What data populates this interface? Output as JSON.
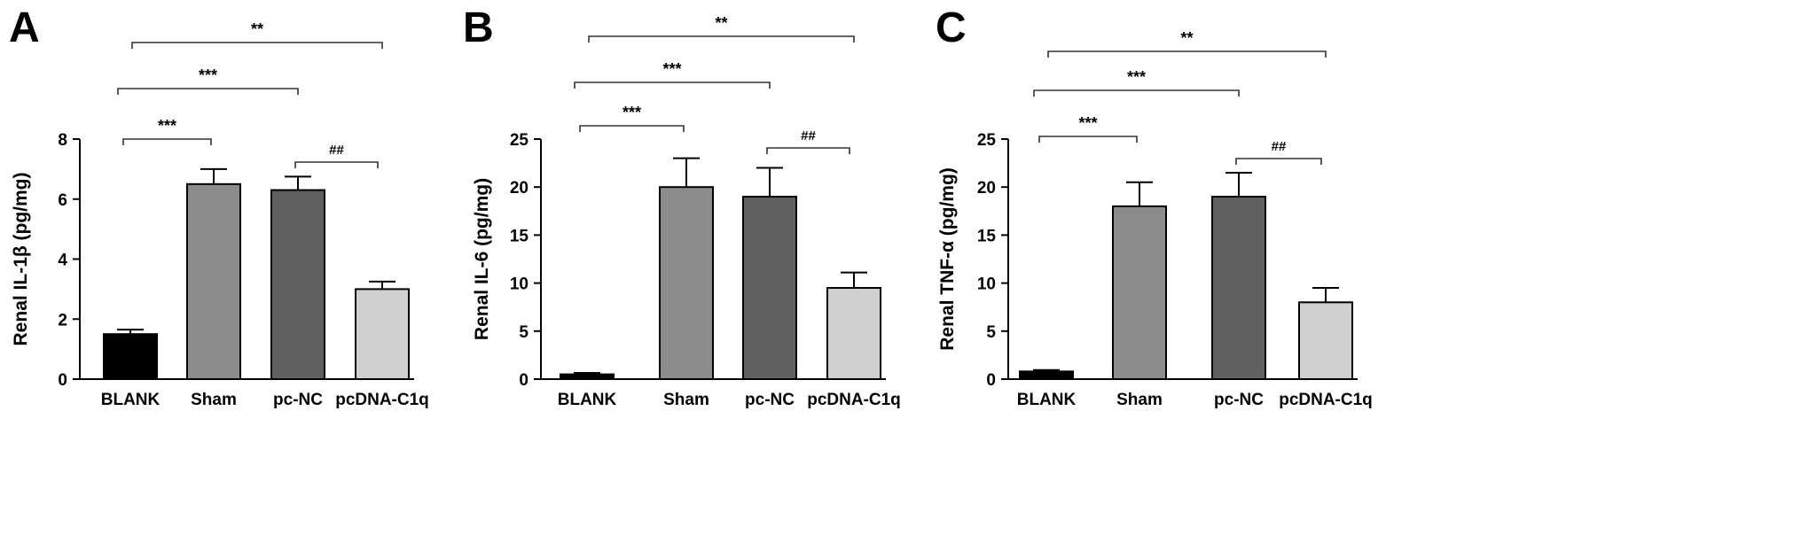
{
  "figure": {
    "colors": {
      "axis": "#000000",
      "bracket": "#333333"
    }
  },
  "chart_data": [
    {
      "panel": "A",
      "type": "bar",
      "categories": [
        "BLANK",
        "Sham",
        "pc-NC",
        "pcDNA-C1q"
      ],
      "values": [
        1.5,
        6.5,
        6.3,
        3.0
      ],
      "errors": [
        0.15,
        0.5,
        0.45,
        0.25
      ],
      "colors": [
        "#000000",
        "#8c8c8c",
        "#606060",
        "#cfcfcf"
      ],
      "ylabel": "Renal IL-1β (pg/mg)",
      "ylim": [
        0,
        8
      ],
      "yticks": [
        0,
        2,
        4,
        6,
        8
      ],
      "comparisons": [
        {
          "from": 0,
          "to": 1,
          "label": "***"
        },
        {
          "from": 0,
          "to": 2,
          "label": "***"
        },
        {
          "from": 0,
          "to": 3,
          "label": "**"
        },
        {
          "from": 2,
          "to": 3,
          "label": "##"
        }
      ]
    },
    {
      "panel": "B",
      "type": "bar",
      "categories": [
        "BLANK",
        "Sham",
        "pc-NC",
        "pcDNA-C1q"
      ],
      "values": [
        0.5,
        20,
        19,
        9.5
      ],
      "errors": [
        0.15,
        3,
        3,
        1.6
      ],
      "colors": [
        "#000000",
        "#8c8c8c",
        "#606060",
        "#cfcfcf"
      ],
      "ylabel": "Renal IL-6 (pg/mg)",
      "ylim": [
        0,
        25
      ],
      "yticks": [
        0,
        5,
        10,
        15,
        20,
        25
      ],
      "comparisons": [
        {
          "from": 0,
          "to": 1,
          "label": "***"
        },
        {
          "from": 0,
          "to": 2,
          "label": "***"
        },
        {
          "from": 0,
          "to": 3,
          "label": "**"
        },
        {
          "from": 2,
          "to": 3,
          "label": "##"
        }
      ]
    },
    {
      "panel": "C",
      "type": "bar",
      "categories": [
        "BLANK",
        "Sham",
        "pc-NC",
        "pcDNA-C1q"
      ],
      "values": [
        0.8,
        18,
        19,
        8
      ],
      "errors": [
        0.15,
        2.5,
        2.5,
        1.5
      ],
      "colors": [
        "#000000",
        "#8c8c8c",
        "#606060",
        "#cfcfcf"
      ],
      "ylabel": "Renal TNF-α (pg/mg)",
      "ylim": [
        0,
        25
      ],
      "yticks": [
        0,
        5,
        10,
        15,
        20,
        25
      ],
      "comparisons": [
        {
          "from": 0,
          "to": 1,
          "label": "***"
        },
        {
          "from": 0,
          "to": 2,
          "label": "***"
        },
        {
          "from": 0,
          "to": 3,
          "label": "**"
        },
        {
          "from": 2,
          "to": 3,
          "label": "##"
        }
      ]
    }
  ]
}
